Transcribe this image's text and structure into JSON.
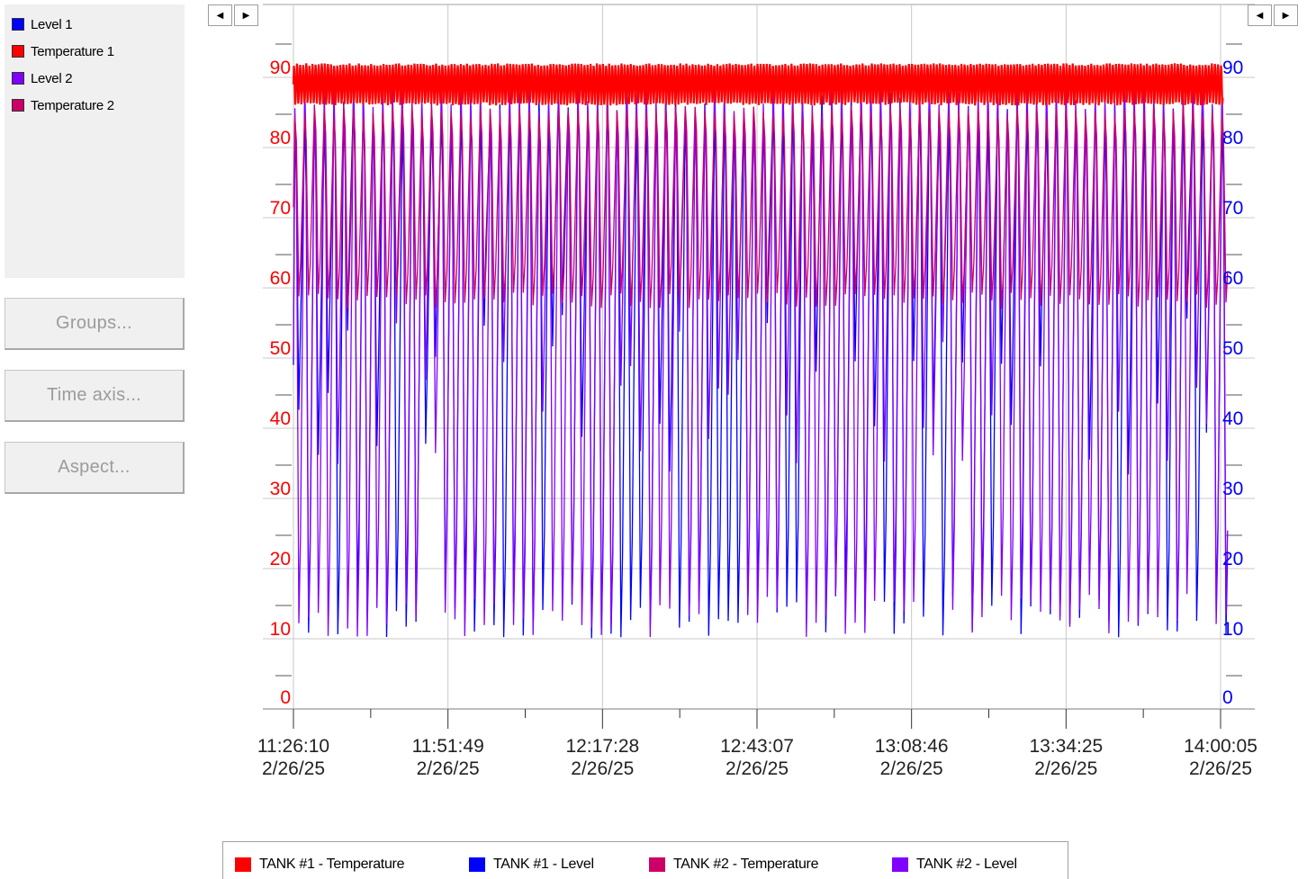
{
  "legend_panel": {
    "items": [
      {
        "label": "Level 1",
        "color": "#0000ff"
      },
      {
        "label": "Temperature 1",
        "color": "#ff0000"
      },
      {
        "label": "Level 2",
        "color": "#8000ff"
      },
      {
        "label": "Temperature 2",
        "color": "#cc0066"
      }
    ]
  },
  "buttons": {
    "groups": "Groups...",
    "time_axis": "Time axis...",
    "aspect": "Aspect..."
  },
  "scroll": {
    "left_icon": "scroll-left-arrow-icon",
    "right_icon": "scroll-right-arrow-icon",
    "left_glyph": "◀",
    "right_glyph": "▶"
  },
  "bottom_legend": [
    {
      "label": "TANK #1 - Temperature",
      "color": "#ff0000"
    },
    {
      "label": "TANK #1 - Level",
      "color": "#0000ff"
    },
    {
      "label": "TANK #2 - Temperature",
      "color": "#cc0066"
    },
    {
      "label": "TANK #2 - Level",
      "color": "#8000ff"
    }
  ],
  "chart_data": {
    "type": "line",
    "title": "",
    "left_axis": {
      "color": "#ff0000",
      "ylim": [
        0,
        95
      ],
      "ticks": [
        0,
        10,
        20,
        30,
        40,
        50,
        60,
        70,
        80,
        90
      ]
    },
    "right_axis": {
      "color": "#0000ff",
      "ylim": [
        0,
        95
      ],
      "ticks": [
        0,
        10,
        20,
        30,
        40,
        50,
        60,
        70,
        80,
        90
      ]
    },
    "x_ticks": [
      {
        "time": "11:26:10",
        "date": "2/26/25"
      },
      {
        "time": "11:51:49",
        "date": "2/26/25"
      },
      {
        "time": "12:17:28",
        "date": "2/26/25"
      },
      {
        "time": "12:43:07",
        "date": "2/26/25"
      },
      {
        "time": "13:08:46",
        "date": "2/26/25"
      },
      {
        "time": "13:34:25",
        "date": "2/26/25"
      },
      {
        "time": "14:00:05",
        "date": "2/26/25"
      }
    ],
    "grid": true,
    "series": [
      {
        "name": "TANK #1 - Level",
        "color": "#0000ff",
        "min": 10,
        "max": 88,
        "cycles": 95
      },
      {
        "name": "TANK #2 - Level",
        "color": "#8000ff",
        "min": 10,
        "max": 90,
        "cycles": 95
      },
      {
        "name": "TANK #2 - Temperature",
        "color": "#cc0066",
        "min": 57,
        "max": 86,
        "cycles": 95
      },
      {
        "name": "TANK #1 - Temperature",
        "color": "#ff0000",
        "min": 86,
        "max": 92,
        "cycles": 300
      }
    ]
  }
}
